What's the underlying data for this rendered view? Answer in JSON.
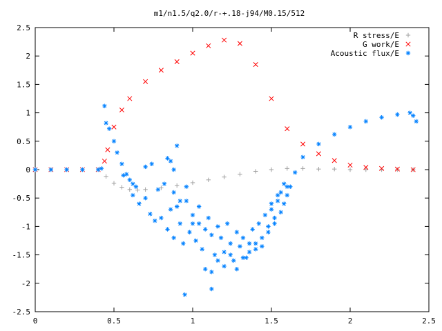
{
  "chart_data": {
    "type": "scatter",
    "title": "m1/n1.5/q2.0/r-+.18-j94/M0.15/512",
    "xlabel": "",
    "ylabel": "",
    "xlim": [
      0,
      2.5
    ],
    "ylim": [
      -2.5,
      2.5
    ],
    "x_ticks": [
      "0",
      "0.5",
      "1",
      "1.5",
      "2",
      "2.5"
    ],
    "y_ticks": [
      "2.5",
      "2",
      "1.5",
      "1",
      "0.5",
      "0",
      "-0.5",
      "-1",
      "-1.5",
      "-2",
      "-2.5"
    ],
    "grid": false,
    "legend_position": "top-right",
    "series": [
      {
        "name": "R stress/E",
        "marker": "+",
        "color": "#a0a0a0",
        "x": [
          0.0,
          0.1,
          0.2,
          0.3,
          0.4,
          0.45,
          0.5,
          0.55,
          0.6,
          0.65,
          0.7,
          0.8,
          0.9,
          1.0,
          1.1,
          1.2,
          1.3,
          1.4,
          1.5,
          1.6,
          1.7,
          1.8,
          1.9,
          2.0,
          2.1,
          2.2,
          2.3,
          2.4
        ],
        "y": [
          0.0,
          0.0,
          0.0,
          0.0,
          0.0,
          -0.12,
          -0.24,
          -0.31,
          -0.35,
          -0.36,
          -0.35,
          -0.32,
          -0.28,
          -0.23,
          -0.18,
          -0.13,
          -0.08,
          -0.03,
          0.0,
          0.02,
          0.02,
          0.01,
          0.01,
          0.0,
          0.0,
          0.0,
          0.0,
          0.0
        ]
      },
      {
        "name": "G work/E",
        "marker": "x",
        "color": "#ff0000",
        "x": [
          0.0,
          0.1,
          0.2,
          0.3,
          0.4,
          0.44,
          0.46,
          0.5,
          0.55,
          0.6,
          0.7,
          0.8,
          0.9,
          1.0,
          1.1,
          1.2,
          1.3,
          1.4,
          1.5,
          1.6,
          1.7,
          1.8,
          1.9,
          2.0,
          2.1,
          2.2,
          2.3,
          2.4
        ],
        "y": [
          0.0,
          0.0,
          0.0,
          0.0,
          0.0,
          0.15,
          0.35,
          0.75,
          1.05,
          1.25,
          1.55,
          1.75,
          1.9,
          2.05,
          2.18,
          2.28,
          2.22,
          1.85,
          1.25,
          0.72,
          0.45,
          0.28,
          0.16,
          0.08,
          0.04,
          0.02,
          0.01,
          0.0
        ]
      },
      {
        "name": "Acoustic flux/E",
        "marker": "*",
        "color": "#0080ff",
        "x": [
          0.0,
          0.1,
          0.2,
          0.3,
          0.4,
          0.42,
          0.44,
          0.45,
          0.47,
          0.5,
          0.52,
          0.55,
          0.58,
          0.6,
          0.62,
          0.64,
          1.62,
          1.65,
          1.7,
          1.8,
          1.9,
          2.0,
          2.1,
          2.2,
          2.3,
          2.38,
          2.4,
          2.42
        ],
        "y": [
          0.0,
          0.0,
          0.0,
          0.0,
          0.0,
          0.02,
          1.12,
          0.82,
          0.72,
          0.5,
          0.3,
          0.1,
          -0.08,
          -0.18,
          -0.25,
          -0.3,
          -0.3,
          -0.05,
          0.22,
          0.45,
          0.62,
          0.75,
          0.85,
          0.92,
          0.97,
          1.0,
          0.95,
          0.85
        ]
      },
      {
        "name": "",
        "marker": "*",
        "color": "#0080ff",
        "x": [
          0.56,
          0.62,
          0.66,
          0.7,
          0.73,
          0.76,
          0.8,
          0.84,
          0.86,
          0.88,
          0.9,
          0.92,
          0.94,
          0.96,
          0.98,
          1.0,
          1.02,
          1.04,
          1.06,
          1.08,
          1.1,
          1.12,
          1.14,
          1.16,
          1.18,
          1.2,
          1.22,
          1.24,
          1.26,
          1.28,
          1.3,
          1.32,
          1.34,
          1.36,
          1.38,
          1.4,
          1.42,
          1.44,
          1.46,
          1.48,
          1.5,
          1.52,
          1.54,
          1.56,
          1.58,
          1.6,
          0.78,
          0.82,
          0.88,
          0.92,
          0.96,
          1.0,
          1.04,
          1.08,
          1.12,
          1.16,
          1.2,
          1.24,
          1.28,
          1.32,
          1.36,
          1.4,
          1.44,
          1.48,
          1.52,
          1.56,
          1.6,
          0.95,
          1.12,
          0.9,
          0.88,
          0.7,
          0.74,
          0.84,
          0.86,
          1.5,
          1.54,
          1.58
        ],
        "y": [
          -0.1,
          -0.45,
          -0.6,
          -0.5,
          -0.78,
          -0.9,
          -0.85,
          -1.05,
          -0.7,
          -1.2,
          -0.65,
          -0.95,
          -1.3,
          -0.55,
          -1.1,
          -0.8,
          -1.25,
          -0.95,
          -1.4,
          -1.05,
          -0.85,
          -1.15,
          -1.5,
          -1.0,
          -1.2,
          -1.45,
          -0.95,
          -1.3,
          -1.6,
          -1.1,
          -1.35,
          -1.2,
          -1.55,
          -1.3,
          -1.05,
          -1.4,
          -0.95,
          -1.2,
          -0.8,
          -1.0,
          -0.7,
          -0.85,
          -0.55,
          -0.4,
          -0.6,
          -0.45,
          -0.35,
          -0.25,
          -0.4,
          -0.55,
          -0.3,
          -0.95,
          -0.65,
          -1.75,
          -1.8,
          -1.6,
          -1.7,
          -1.5,
          -1.75,
          -1.55,
          -1.45,
          -1.3,
          -1.35,
          -1.1,
          -0.95,
          -0.75,
          -0.3,
          -2.2,
          -2.1,
          0.42,
          0.0,
          0.05,
          0.1,
          0.2,
          0.15,
          -0.6,
          -0.45,
          -0.25
        ]
      }
    ]
  }
}
